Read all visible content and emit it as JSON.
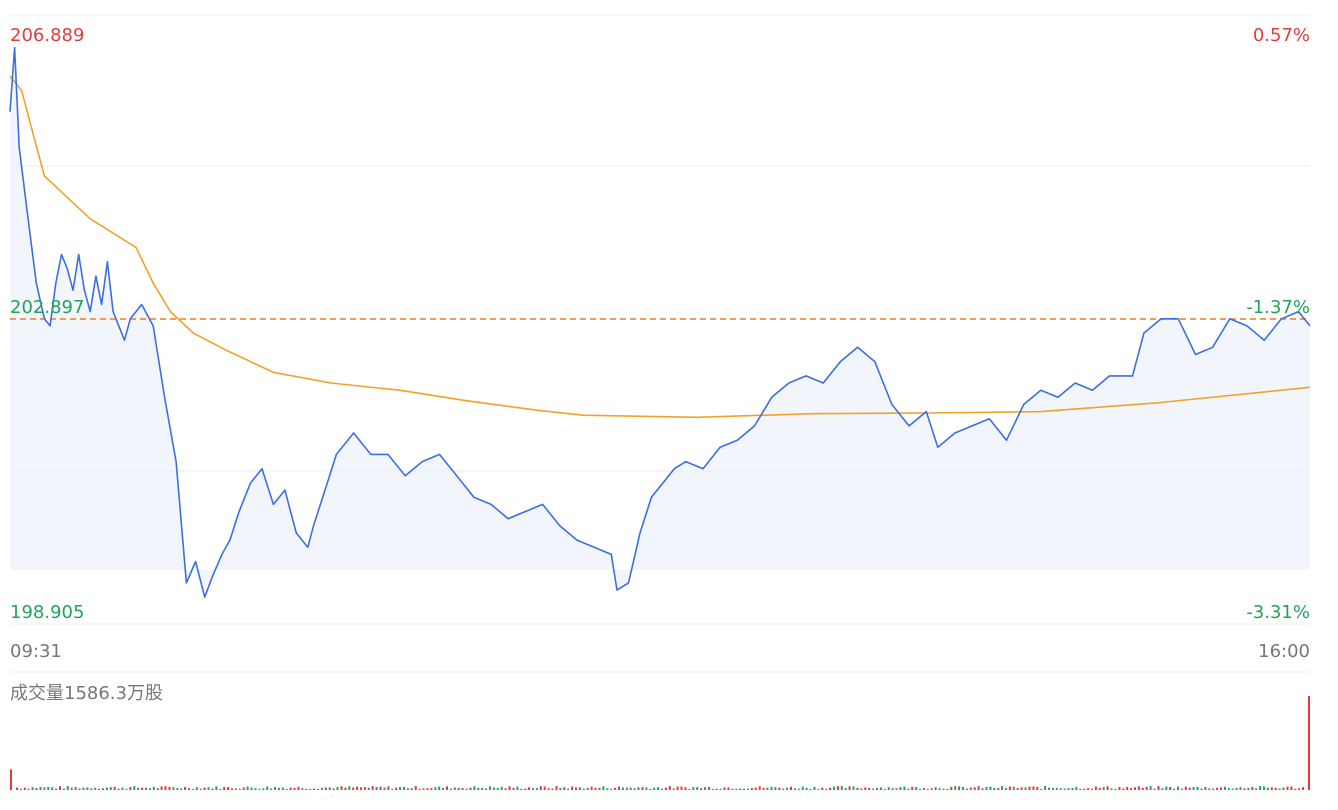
{
  "chart_data": {
    "type": "line",
    "price_axis": {
      "high": 206.889,
      "mid": 202.897,
      "low": 198.905,
      "high_label": "206.889",
      "mid_label": "202.897",
      "low_label": "198.905"
    },
    "percent_axis": {
      "high": 0.57,
      "mid": -1.37,
      "low": -3.31,
      "high_label": "0.57%",
      "mid_label": "-1.37%",
      "low_label": "-3.31%"
    },
    "x_axis": {
      "start_label": "09:31",
      "end_label": "16:00"
    },
    "reference_line": 202.897,
    "series": [
      {
        "role": "price",
        "color": "#3d6fe0",
        "points": [
          [
            0,
            205.8
          ],
          [
            0.4,
            206.7
          ],
          [
            0.8,
            205.3
          ],
          [
            1.5,
            204.4
          ],
          [
            2.3,
            203.4
          ],
          [
            3,
            202.9
          ],
          [
            3.5,
            202.8
          ],
          [
            4,
            203.4
          ],
          [
            4.5,
            203.8
          ],
          [
            5,
            203.6
          ],
          [
            5.5,
            203.3
          ],
          [
            6,
            203.8
          ],
          [
            6.5,
            203.3
          ],
          [
            7,
            203.0
          ],
          [
            7.5,
            203.5
          ],
          [
            8,
            203.1
          ],
          [
            8.5,
            203.7
          ],
          [
            9,
            203.0
          ],
          [
            10,
            202.6
          ],
          [
            10.5,
            202.9
          ],
          [
            11.5,
            203.1
          ],
          [
            12.5,
            202.8
          ],
          [
            13.5,
            201.8
          ],
          [
            14.5,
            200.9
          ],
          [
            15.4,
            199.2
          ],
          [
            16.2,
            199.5
          ],
          [
            17,
            199.0
          ],
          [
            17.7,
            199.3
          ],
          [
            18.5,
            199.6
          ],
          [
            19.2,
            199.8
          ],
          [
            20,
            200.2
          ],
          [
            21,
            200.6
          ],
          [
            22,
            200.8
          ],
          [
            23,
            200.3
          ],
          [
            24,
            200.5
          ],
          [
            25,
            199.9
          ],
          [
            26,
            199.7
          ],
          [
            26.5,
            200.0
          ],
          [
            27.5,
            200.5
          ],
          [
            28.5,
            201.0
          ],
          [
            30,
            201.3
          ],
          [
            31.5,
            201.0
          ],
          [
            33,
            201.0
          ],
          [
            34.5,
            200.7
          ],
          [
            36,
            200.9
          ],
          [
            37.5,
            201.0
          ],
          [
            39,
            200.7
          ],
          [
            40.5,
            200.4
          ],
          [
            42,
            200.3
          ],
          [
            43.5,
            200.1
          ],
          [
            45,
            200.2
          ],
          [
            46.5,
            200.3
          ],
          [
            48,
            200.0
          ],
          [
            49.5,
            199.8
          ],
          [
            51,
            199.7
          ],
          [
            52.5,
            199.6
          ],
          [
            53,
            199.1
          ],
          [
            54,
            199.2
          ],
          [
            55,
            199.9
          ],
          [
            56,
            200.4
          ],
          [
            57,
            200.6
          ],
          [
            58,
            200.8
          ],
          [
            59,
            200.9
          ],
          [
            60.5,
            200.8
          ],
          [
            62,
            201.1
          ],
          [
            63.5,
            201.2
          ],
          [
            65,
            201.4
          ],
          [
            66.5,
            201.8
          ],
          [
            68,
            202.0
          ],
          [
            69.5,
            202.1
          ],
          [
            71,
            202.0
          ],
          [
            72.5,
            202.3
          ],
          [
            74,
            202.5
          ],
          [
            75.5,
            202.3
          ],
          [
            77,
            201.7
          ],
          [
            78.5,
            201.4
          ],
          [
            80,
            201.6
          ],
          [
            81,
            201.1
          ],
          [
            82.5,
            201.3
          ],
          [
            84,
            201.4
          ],
          [
            85.5,
            201.5
          ],
          [
            87,
            201.2
          ],
          [
            88.5,
            201.7
          ],
          [
            90,
            201.9
          ],
          [
            91.5,
            201.8
          ],
          [
            93,
            202.0
          ],
          [
            94.5,
            201.9
          ],
          [
            96,
            202.1
          ],
          [
            98,
            202.1
          ],
          [
            99,
            202.7
          ],
          [
            100.5,
            202.9
          ],
          [
            102,
            202.9
          ],
          [
            103.5,
            202.4
          ],
          [
            105,
            202.5
          ],
          [
            106.5,
            202.9
          ],
          [
            108,
            202.8
          ],
          [
            109.5,
            202.6
          ],
          [
            111,
            202.9
          ],
          [
            112.5,
            203.0
          ],
          [
            113.5,
            202.8
          ]
        ]
      },
      {
        "role": "average",
        "color": "#f0a326",
        "points": [
          [
            0,
            206.3
          ],
          [
            1,
            206.1
          ],
          [
            2,
            205.5
          ],
          [
            3,
            204.9
          ],
          [
            5,
            204.6
          ],
          [
            7,
            204.3
          ],
          [
            9,
            204.1
          ],
          [
            11,
            203.9
          ],
          [
            12.5,
            203.4
          ],
          [
            14,
            203.0
          ],
          [
            16,
            202.7
          ],
          [
            19,
            202.45
          ],
          [
            23,
            202.15
          ],
          [
            28,
            202.0
          ],
          [
            34,
            201.9
          ],
          [
            40,
            201.75
          ],
          [
            46,
            201.62
          ],
          [
            50,
            201.55
          ],
          [
            60,
            201.52
          ],
          [
            70,
            201.57
          ],
          [
            80,
            201.58
          ],
          [
            90,
            201.6
          ],
          [
            100,
            201.72
          ],
          [
            113.5,
            201.94
          ]
        ]
      }
    ],
    "volume": {
      "title": "成交量1586.3万股",
      "up_color": "#e33b3b",
      "down_color": "#23a35c",
      "bars": [
        {
          "x": 0,
          "v": 0.22,
          "c": "up"
        },
        {
          "x": 113.5,
          "v": 1.0,
          "c": "up"
        }
      ]
    },
    "colors": {
      "up_text": "#e33b3b",
      "down_text": "#23a35c",
      "axis_text": "#777777",
      "reference": "#ef7c1f",
      "grid": "#ececec",
      "fill": "#eef2fb"
    }
  }
}
